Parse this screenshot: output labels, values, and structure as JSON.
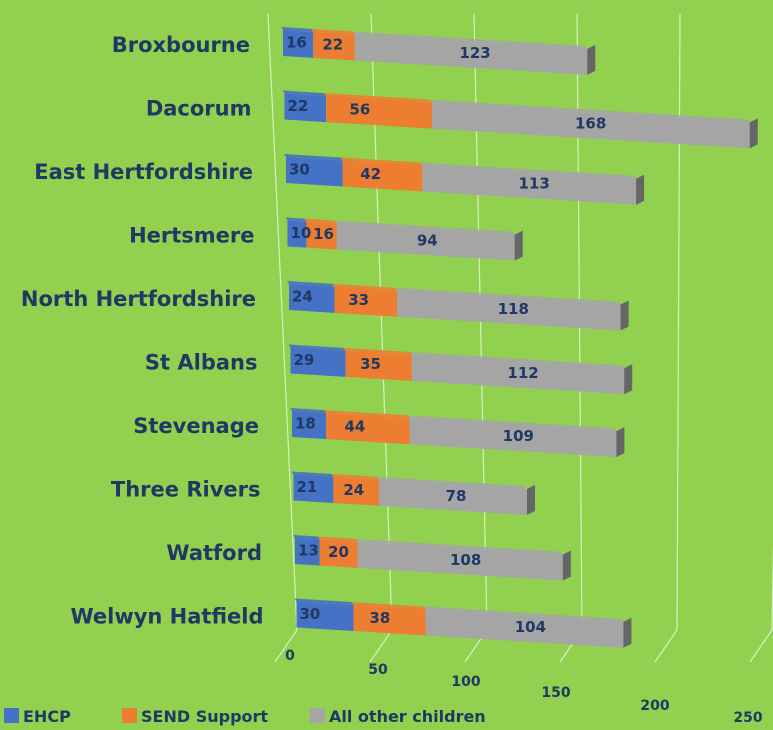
{
  "chart_data": {
    "type": "bar",
    "orientation": "horizontal",
    "stacked": true,
    "categories": [
      "Broxbourne",
      "Dacorum",
      "East Hertfordshire",
      "Hertsmere",
      "North Hertfordshire",
      "St Albans",
      "Stevenage",
      "Three Rivers",
      "Watford",
      "Welwyn Hatfield"
    ],
    "series": [
      {
        "name": "EHCP",
        "color": "#4472c4",
        "values": [
          16,
          22,
          30,
          10,
          24,
          29,
          18,
          21,
          13,
          30
        ]
      },
      {
        "name": "SEND Support",
        "color": "#ed7d31",
        "values": [
          22,
          56,
          42,
          16,
          33,
          35,
          44,
          24,
          20,
          38
        ]
      },
      {
        "name": "All other children",
        "color": "#a5a5a5",
        "values": [
          123,
          168,
          113,
          94,
          118,
          112,
          109,
          78,
          108,
          104
        ]
      }
    ],
    "x_ticks": [
      0,
      50,
      100,
      150,
      200,
      250
    ],
    "xlim": [
      0,
      250
    ],
    "legend_position": "bottom-left",
    "grid": true
  }
}
